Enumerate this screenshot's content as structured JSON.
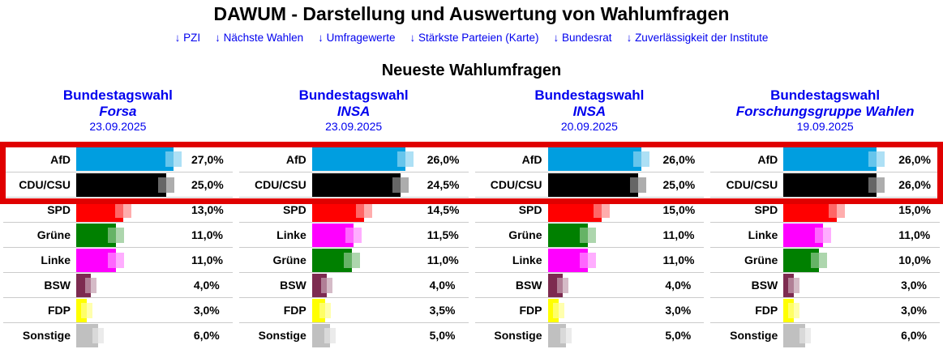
{
  "header": {
    "title": "DAWUM - Darstellung und Auswertung von Wahlumfragen",
    "nav_links": [
      "↓ PZI",
      "↓ Nächste Wahlen",
      "↓ Umfragewerte",
      "↓ Stärkste Parteien (Karte)",
      "↓ Bundesrat",
      "↓ Zuverlässigkeit der Institute"
    ]
  },
  "section_title": "Neueste Wahlumfragen",
  "colors": {
    "link_blue": "#0000EE",
    "highlight_red": "#E00000",
    "separator_grey": "#CBCBCB",
    "parties": {
      "AfD": "#009EE0",
      "CDU/CSU": "#000000",
      "SPD": "#FF0000",
      "Grüne": "#008000",
      "Linke": "#FF00FF",
      "BSW": "#7D2B50",
      "FDP": "#FFFF00",
      "Sonstige": "#C0C0C0"
    }
  },
  "highlight": {
    "color": "#E00000",
    "note": "red frame around the AfD and CDU/CSU rows of all four polls"
  },
  "chart_data": [
    {
      "type": "bar",
      "orientation": "horizontal",
      "election": "Bundestagswahl",
      "institute": "Forsa",
      "date": "23.09.2025",
      "unit": "%",
      "xlim": [
        0,
        30
      ],
      "results": [
        {
          "party": "AfD",
          "value": 27.0,
          "display": "27,0%",
          "highlighted": true
        },
        {
          "party": "CDU/CSU",
          "value": 25.0,
          "display": "25,0%",
          "highlighted": true
        },
        {
          "party": "SPD",
          "value": 13.0,
          "display": "13,0%",
          "highlighted": false
        },
        {
          "party": "Grüne",
          "value": 11.0,
          "display": "11,0%",
          "highlighted": false
        },
        {
          "party": "Linke",
          "value": 11.0,
          "display": "11,0%",
          "highlighted": false
        },
        {
          "party": "BSW",
          "value": 4.0,
          "display": "4,0%",
          "highlighted": false
        },
        {
          "party": "FDP",
          "value": 3.0,
          "display": "3,0%",
          "highlighted": false
        },
        {
          "party": "Sonstige",
          "value": 6.0,
          "display": "6,0%",
          "highlighted": false
        }
      ]
    },
    {
      "type": "bar",
      "orientation": "horizontal",
      "election": "Bundestagswahl",
      "institute": "INSA",
      "date": "23.09.2025",
      "unit": "%",
      "xlim": [
        0,
        30
      ],
      "results": [
        {
          "party": "AfD",
          "value": 26.0,
          "display": "26,0%",
          "highlighted": true
        },
        {
          "party": "CDU/CSU",
          "value": 24.5,
          "display": "24,5%",
          "highlighted": true
        },
        {
          "party": "SPD",
          "value": 14.5,
          "display": "14,5%",
          "highlighted": false
        },
        {
          "party": "Linke",
          "value": 11.5,
          "display": "11,5%",
          "highlighted": false
        },
        {
          "party": "Grüne",
          "value": 11.0,
          "display": "11,0%",
          "highlighted": false
        },
        {
          "party": "BSW",
          "value": 4.0,
          "display": "4,0%",
          "highlighted": false
        },
        {
          "party": "FDP",
          "value": 3.5,
          "display": "3,5%",
          "highlighted": false
        },
        {
          "party": "Sonstige",
          "value": 5.0,
          "display": "5,0%",
          "highlighted": false
        }
      ]
    },
    {
      "type": "bar",
      "orientation": "horizontal",
      "election": "Bundestagswahl",
      "institute": "INSA",
      "date": "20.09.2025",
      "unit": "%",
      "xlim": [
        0,
        30
      ],
      "results": [
        {
          "party": "AfD",
          "value": 26.0,
          "display": "26,0%",
          "highlighted": true
        },
        {
          "party": "CDU/CSU",
          "value": 25.0,
          "display": "25,0%",
          "highlighted": true
        },
        {
          "party": "SPD",
          "value": 15.0,
          "display": "15,0%",
          "highlighted": false
        },
        {
          "party": "Grüne",
          "value": 11.0,
          "display": "11,0%",
          "highlighted": false
        },
        {
          "party": "Linke",
          "value": 11.0,
          "display": "11,0%",
          "highlighted": false
        },
        {
          "party": "BSW",
          "value": 4.0,
          "display": "4,0%",
          "highlighted": false
        },
        {
          "party": "FDP",
          "value": 3.0,
          "display": "3,0%",
          "highlighted": false
        },
        {
          "party": "Sonstige",
          "value": 5.0,
          "display": "5,0%",
          "highlighted": false
        }
      ]
    },
    {
      "type": "bar",
      "orientation": "horizontal",
      "election": "Bundestagswahl",
      "institute": "Forschungsgruppe Wahlen",
      "date": "19.09.2025",
      "unit": "%",
      "xlim": [
        0,
        30
      ],
      "results": [
        {
          "party": "AfD",
          "value": 26.0,
          "display": "26,0%",
          "highlighted": true
        },
        {
          "party": "CDU/CSU",
          "value": 26.0,
          "display": "26,0%",
          "highlighted": true
        },
        {
          "party": "SPD",
          "value": 15.0,
          "display": "15,0%",
          "highlighted": false
        },
        {
          "party": "Linke",
          "value": 11.0,
          "display": "11,0%",
          "highlighted": false
        },
        {
          "party": "Grüne",
          "value": 10.0,
          "display": "10,0%",
          "highlighted": false
        },
        {
          "party": "BSW",
          "value": 3.0,
          "display": "3,0%",
          "highlighted": false
        },
        {
          "party": "FDP",
          "value": 3.0,
          "display": "3,0%",
          "highlighted": false
        },
        {
          "party": "Sonstige",
          "value": 6.0,
          "display": "6,0%",
          "highlighted": false
        }
      ]
    }
  ]
}
